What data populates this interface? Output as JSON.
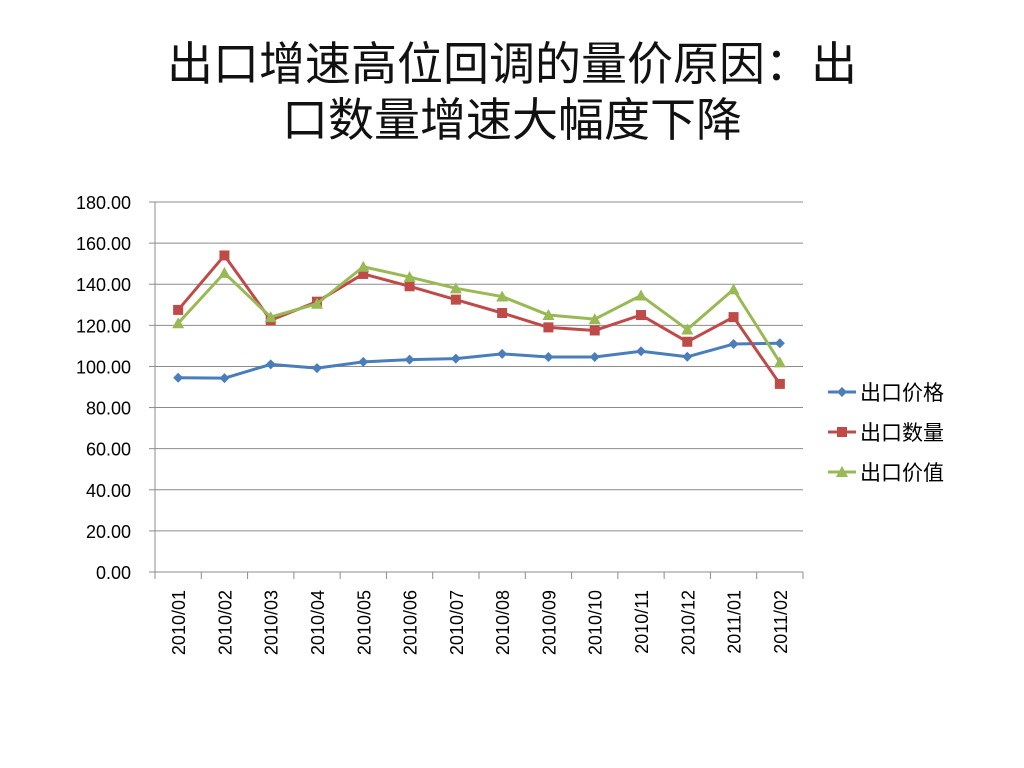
{
  "title_lines": [
    "出口增速高位回调的量价原因：出",
    "口数量增速大幅度下降"
  ],
  "chart_data": {
    "type": "line",
    "categories": [
      "2010/01",
      "2010/02",
      "2010/03",
      "2010/04",
      "2010/05",
      "2010/06",
      "2010/07",
      "2010/08",
      "2010/09",
      "2010/10",
      "2010/11",
      "2010/12",
      "2011/01",
      "2011/02"
    ],
    "ylim": [
      0,
      180
    ],
    "yticks": [
      "0.00",
      "20.00",
      "40.00",
      "60.00",
      "80.00",
      "100.00",
      "120.00",
      "140.00",
      "160.00",
      "180.00"
    ],
    "grid": true,
    "legend": "right",
    "series": [
      {
        "name": "出口价格",
        "color": "#4a7ebb",
        "marker": "diamond",
        "values": [
          94.5,
          94.3,
          101.0,
          99.2,
          102.2,
          103.3,
          103.8,
          106.1,
          104.6,
          104.6,
          107.4,
          104.7,
          110.9,
          111.3
        ]
      },
      {
        "name": "出口数量",
        "color": "#be4b48",
        "marker": "square",
        "values": [
          127.5,
          154.0,
          122.5,
          131.5,
          145.0,
          139.0,
          132.5,
          126.0,
          119.0,
          117.5,
          125.0,
          112.0,
          124.0,
          91.5
        ]
      },
      {
        "name": "出口价值",
        "color": "#98b954",
        "marker": "triangle",
        "values": [
          121.0,
          145.5,
          124.0,
          130.5,
          148.5,
          143.5,
          138.0,
          134.0,
          125.0,
          123.0,
          134.5,
          118.0,
          137.5,
          102.0
        ]
      }
    ]
  }
}
